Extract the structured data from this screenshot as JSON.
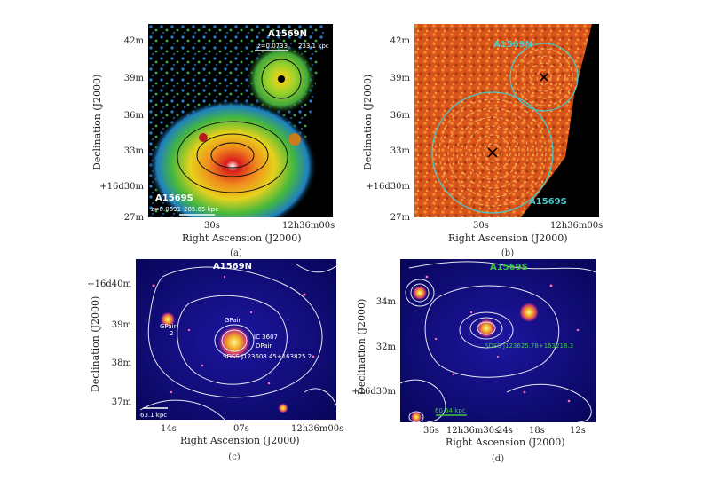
{
  "panel_a": {
    "cluster_north": "A1569N",
    "z_north": "z=0.0733",
    "scale_north": "233.1 kpc",
    "cluster_south": "A1569S",
    "z_south": "z=0.0691",
    "scale_south": "205.65 kpc",
    "yticks": [
      "42m",
      "39m",
      "36m",
      "33m",
      "+16d30m",
      "27m"
    ],
    "xticks": [
      "30s",
      "12h36m00s"
    ],
    "xlabel": "Right Ascension (J2000)",
    "ylabel": "Declination (J2000)",
    "caption": "(a)"
  },
  "panel_b": {
    "cluster_north": "A1569N",
    "cluster_south": "A1569S",
    "yticks": [
      "42m",
      "39m",
      "36m",
      "33m",
      "+16d30m",
      "27m"
    ],
    "xticks": [
      "30s",
      "12h36m00s"
    ],
    "xlabel": "Right Ascension (J2000)",
    "ylabel": "Declination (J2000)",
    "caption": "(b)"
  },
  "panel_c": {
    "cluster": "A1569N",
    "gpair_left": "GPair",
    "gpair_left_2": "2",
    "gpair_center": "GPair",
    "ic_label": "IC 3607",
    "dpair": "DPair",
    "sdss": "SDSS J123608.45+163825.2",
    "scale": "63.1 kpc",
    "yticks": [
      "+16d40m",
      "39m",
      "38m",
      "37m"
    ],
    "xticks": [
      "14s",
      "07s",
      "12h36m00s"
    ],
    "xlabel": "Right Ascension (J2000)",
    "ylabel": "Declination (J2000)",
    "caption": "(c)"
  },
  "panel_d": {
    "cluster": "A1569S",
    "sdss": "SDSS J123625.78+163218.3",
    "scale": "60.64 kpc",
    "yticks": [
      "34m",
      "32m",
      "+16d30m"
    ],
    "xticks": [
      "36s",
      "12h36m30s",
      "24s",
      "18s",
      "12s"
    ],
    "xlabel": "Right Ascension (J2000)",
    "ylabel": "Declination (J2000)",
    "caption": "(d)"
  }
}
